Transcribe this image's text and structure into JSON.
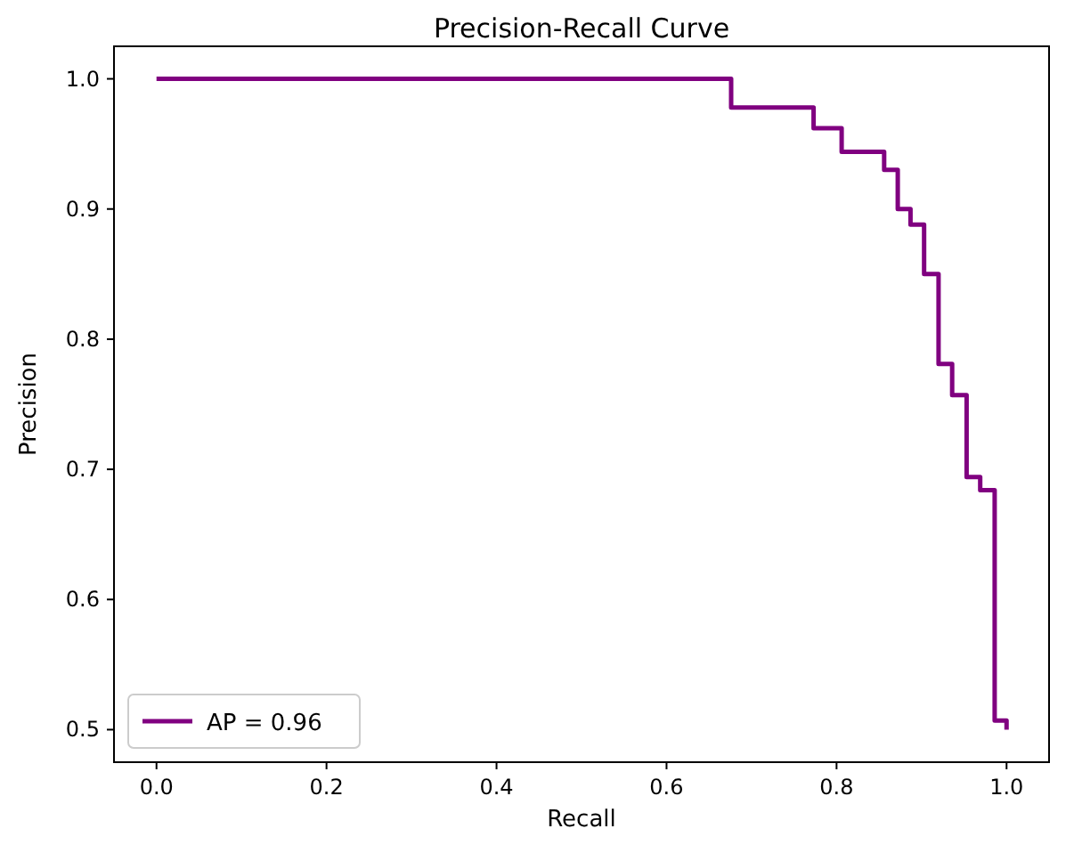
{
  "chart_data": {
    "type": "step",
    "title": "Precision-Recall Curve",
    "xlabel": "Recall",
    "ylabel": "Precision",
    "x": [
      0,
      0.676,
      0.773,
      0.806,
      0.856,
      0.872,
      0.887,
      0.903,
      0.92,
      0.936,
      0.953,
      0.969,
      0.986,
      1.0
    ],
    "series": [
      {
        "name": "AP = 0.96",
        "color": "#800080",
        "values": [
          1.0,
          0.978,
          0.962,
          0.944,
          0.93,
          0.9,
          0.888,
          0.85,
          0.781,
          0.757,
          0.694,
          0.684,
          0.507,
          0.5
        ]
      }
    ],
    "xlim": [
      -0.05,
      1.05
    ],
    "xticks": [
      {
        "value": 0,
        "label": "0.0"
      },
      0.2,
      0.4,
      0.6,
      0.8,
      {
        "value": 1,
        "label": "1.0"
      }
    ],
    "ylim": [
      0.475,
      1.025
    ],
    "yticks": [
      {
        "value": 0.5,
        "label": "0.5"
      },
      0.6,
      0.7,
      0.8,
      0.9,
      {
        "value": 1,
        "label": "1.0"
      }
    ],
    "grid": false,
    "legend": "bottom left",
    "line_style": "solid"
  }
}
